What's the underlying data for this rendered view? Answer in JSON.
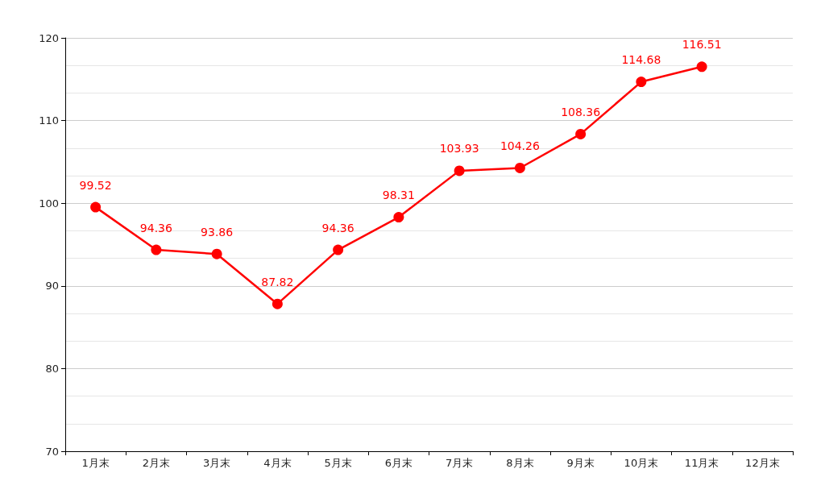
{
  "chart_data": {
    "type": "line",
    "categories": [
      "1月末",
      "2月末",
      "3月末",
      "4月末",
      "5月末",
      "6月末",
      "7月末",
      "8月末",
      "9月末",
      "10月末",
      "11月末",
      "12月末"
    ],
    "series": [
      {
        "color": "#ff0000",
        "values": [
          99.52,
          94.36,
          93.86,
          87.82,
          94.36,
          98.31,
          103.93,
          104.26,
          108.36,
          114.68,
          116.51,
          null
        ]
      }
    ],
    "ylim": [
      70,
      120
    ],
    "yticks": [
      70,
      80,
      90,
      100,
      110,
      120
    ],
    "grid": "y",
    "marker": "circle",
    "line_style": "solid",
    "data_labels": true
  }
}
